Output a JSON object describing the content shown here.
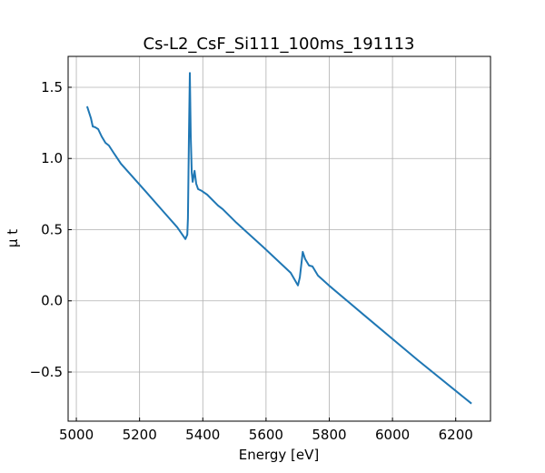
{
  "chart_data": {
    "type": "line",
    "title": "Cs-L2_CsF_Si111_100ms_191113",
    "xlabel": "Energy [eV]",
    "ylabel": "μ t",
    "xlim": [
      4974,
      6310
    ],
    "ylim": [
      -0.845,
      1.717
    ],
    "grid": true,
    "xticks": [
      5000,
      5200,
      5400,
      5600,
      5800,
      6000,
      6200
    ],
    "xtick_labels": [
      "5000",
      "5200",
      "5400",
      "5600",
      "5800",
      "6000",
      "6200"
    ],
    "yticks": [
      -0.5,
      0.0,
      0.5,
      1.0,
      1.5
    ],
    "ytick_labels": [
      "−0.5",
      "0.0",
      "0.5",
      "1.0",
      "1.5"
    ],
    "series": [
      {
        "name": "mu_t",
        "color": "#1f77b4",
        "x": [
          5034,
          5046,
          5052,
          5060,
          5069,
          5080,
          5092,
          5103,
          5118,
          5141,
          5218,
          5276,
          5319,
          5345,
          5351,
          5353,
          5356,
          5359,
          5362,
          5365,
          5368,
          5374,
          5379,
          5385,
          5397,
          5414,
          5448,
          5463,
          5506,
          5592,
          5678,
          5701,
          5707,
          5716,
          5724,
          5736,
          5747,
          5764,
          5799,
          5908,
          6080,
          6250
        ],
        "y": [
          1.366,
          1.283,
          1.225,
          1.219,
          1.206,
          1.155,
          1.11,
          1.091,
          1.04,
          0.964,
          0.772,
          0.625,
          0.517,
          0.434,
          0.465,
          0.58,
          1.155,
          1.6,
          1.155,
          0.9,
          0.836,
          0.913,
          0.823,
          0.785,
          0.772,
          0.746,
          0.67,
          0.644,
          0.549,
          0.376,
          0.197,
          0.108,
          0.165,
          0.344,
          0.293,
          0.248,
          0.242,
          0.178,
          0.108,
          -0.096,
          -0.416,
          -0.722
        ]
      }
    ]
  }
}
